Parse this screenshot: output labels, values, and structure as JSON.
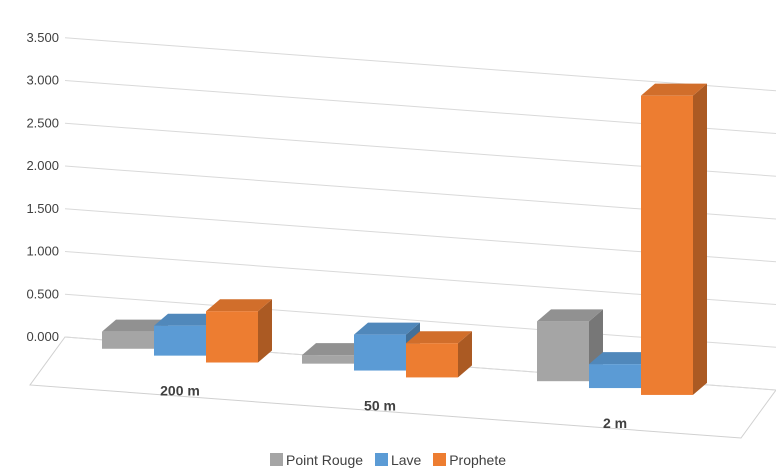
{
  "chart_data": {
    "type": "bar",
    "title": "",
    "xlabel": "",
    "ylabel": "",
    "categories": [
      "200 m",
      "50 m",
      "2 m"
    ],
    "series": [
      {
        "name": "Point Rouge",
        "color": "#a5a5a5",
        "values": [
          0.2,
          0.1,
          0.7
        ]
      },
      {
        "name": "Lave",
        "color": "#5b9bd5",
        "values": [
          0.35,
          0.42,
          0.28
        ]
      },
      {
        "name": "Prophete",
        "color": "#ed7d31",
        "values": [
          0.6,
          0.4,
          3.5
        ]
      }
    ],
    "yticks": [
      "0.000",
      "0.500",
      "1.000",
      "1.500",
      "2.000",
      "2.500",
      "3.000",
      "3.500"
    ],
    "ylim": [
      0,
      3.5
    ],
    "grid": true,
    "legend": "bottom",
    "style": "3d-column"
  }
}
